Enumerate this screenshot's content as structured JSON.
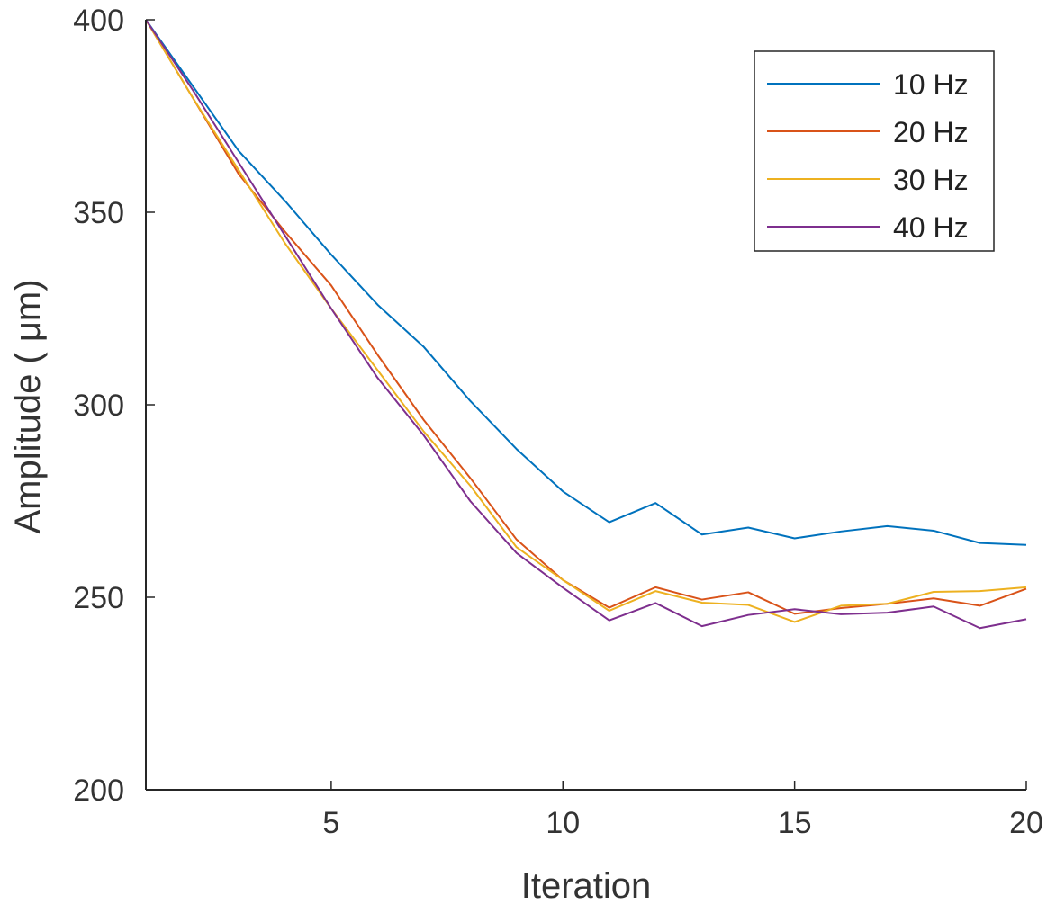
{
  "chart_data": {
    "type": "line",
    "xlabel": "Iteration",
    "ylabel": "Amplitude ( μm)",
    "xlim": [
      1,
      20
    ],
    "ylim": [
      200,
      400
    ],
    "xticks": [
      5,
      10,
      15,
      20
    ],
    "yticks": [
      200,
      250,
      300,
      350,
      400
    ],
    "grid": false,
    "legend_position": "top-right",
    "x": [
      1,
      2,
      3,
      4,
      5,
      6,
      7,
      8,
      9,
      10,
      11,
      12,
      13,
      14,
      15,
      16,
      17,
      18,
      19,
      20
    ],
    "series": [
      {
        "name": "10 Hz",
        "color": "#0072BD",
        "values": [
          400,
          383,
          366,
          353,
          339,
          326,
          315,
          301,
          288.5,
          277.5,
          269.5,
          274.5,
          266.3,
          268.1,
          265.3,
          267.1,
          268.5,
          267.3,
          264.1,
          263.6
        ]
      },
      {
        "name": "20 Hz",
        "color": "#D95319",
        "values": [
          400,
          380,
          360,
          345,
          331,
          313,
          296,
          281,
          265,
          254.5,
          247.3,
          252.6,
          249.4,
          251.3,
          245.7,
          247.2,
          248.3,
          249.7,
          247.8,
          252.2
        ]
      },
      {
        "name": "30 Hz",
        "color": "#EDB120",
        "values": [
          400,
          380,
          361,
          342,
          325,
          309,
          293,
          279,
          263,
          254.5,
          246.5,
          251.6,
          248.6,
          248,
          243.6,
          247.8,
          248.3,
          251.4,
          251.6,
          252.6
        ]
      },
      {
        "name": "40 Hz",
        "color": "#7E2F8E",
        "values": [
          400,
          382,
          363,
          344,
          325,
          307,
          292,
          275,
          261.5,
          252.5,
          244,
          248.5,
          242.5,
          245.4,
          246.9,
          245.6,
          246,
          247.6,
          242,
          244.3
        ]
      }
    ]
  }
}
